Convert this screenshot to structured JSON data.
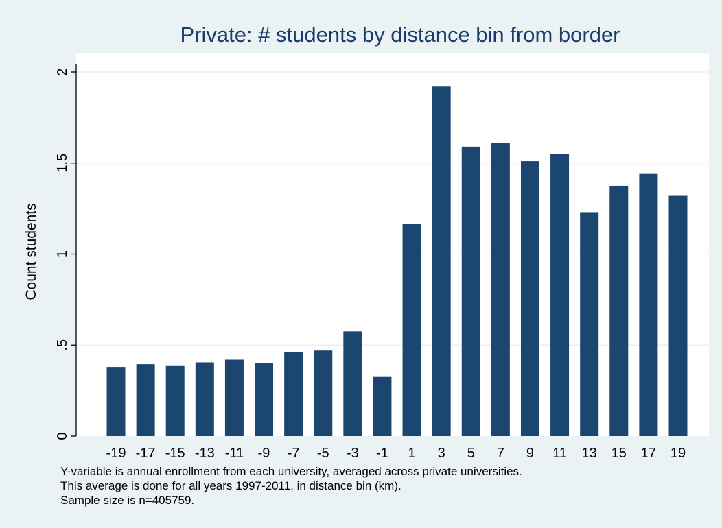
{
  "chart_data": {
    "type": "bar",
    "title": "Private: # students by distance bin from border",
    "ylabel": "Count students",
    "xlabel": "",
    "categories": [
      "-19",
      "-17",
      "-15",
      "-13",
      "-11",
      "-9",
      "-7",
      "-5",
      "-3",
      "-1",
      "1",
      "3",
      "5",
      "7",
      "9",
      "11",
      "13",
      "15",
      "17",
      "19"
    ],
    "values": [
      0.38,
      0.395,
      0.385,
      0.405,
      0.42,
      0.4,
      0.46,
      0.47,
      0.575,
      0.325,
      1.165,
      1.92,
      1.59,
      1.61,
      1.51,
      1.55,
      1.23,
      1.375,
      1.44,
      1.32
    ],
    "ylim": [
      0,
      2.0
    ],
    "yticks": [
      0,
      0.5,
      1,
      1.5,
      2
    ],
    "ytick_labels": [
      "0",
      ".5",
      "1",
      "1.5",
      "2"
    ],
    "grid": true,
    "bar_color": "#1a4670",
    "title_color": "#1a3b6b",
    "plot_background": "#ffffff",
    "page_background": "#eaf2f3"
  },
  "notes": [
    "Y-variable is annual enrollment from each university, averaged across private universities.",
    "This average is done for all years 1997-2011, in distance bin (km).",
    "Sample size is  n=405759."
  ]
}
